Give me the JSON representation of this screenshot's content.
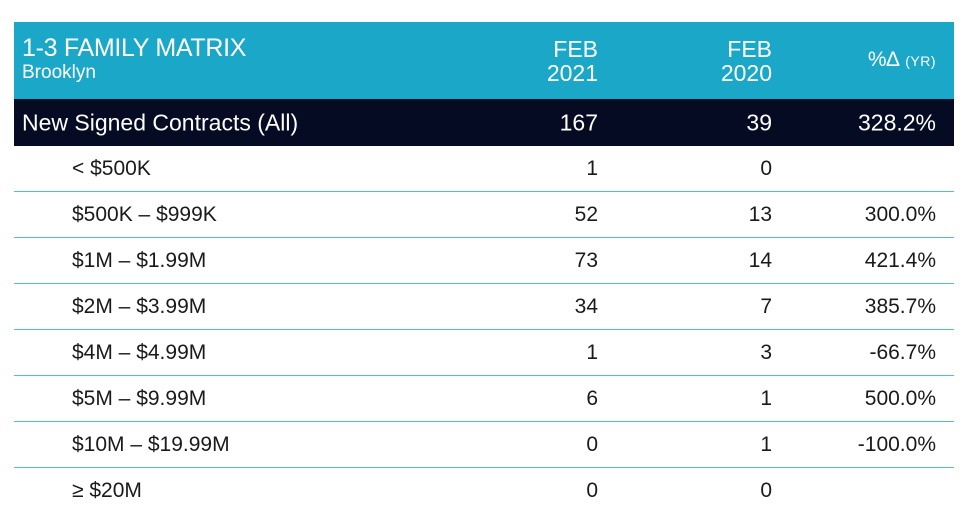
{
  "header": {
    "title": "1-3 FAMILY MATRIX",
    "subtitle": "Brooklyn",
    "col1_line1": "FEB",
    "col1_line2": "2021",
    "col2_line1": "FEB",
    "col2_line2": "2020",
    "col3_main": "%∆",
    "col3_suffix": "(YR)"
  },
  "total": {
    "label": "New Signed Contracts (All)",
    "v2021": "167",
    "v2020": "39",
    "pct": "328.2%"
  },
  "rows": [
    {
      "label": "< $500K",
      "v2021": "1",
      "v2020": "0",
      "pct": ""
    },
    {
      "label": "$500K – $999K",
      "v2021": "52",
      "v2020": "13",
      "pct": "300.0%"
    },
    {
      "label": "$1M – $1.99M",
      "v2021": "73",
      "v2020": "14",
      "pct": "421.4%"
    },
    {
      "label": "$2M – $3.99M",
      "v2021": "34",
      "v2020": "7",
      "pct": "385.7%"
    },
    {
      "label": "$4M – $4.99M",
      "v2021": "1",
      "v2020": "3",
      "pct": "-66.7%"
    },
    {
      "label": "$5M – $9.99M",
      "v2021": "6",
      "v2020": "1",
      "pct": "500.0%"
    },
    {
      "label": "$10M – $19.99M",
      "v2021": "0",
      "v2020": "1",
      "pct": "-100.0%"
    },
    {
      "label": "≥ $20M",
      "v2021": "0",
      "v2020": "0",
      "pct": ""
    }
  ],
  "colors": {
    "header_bg": "#1ba8c8",
    "total_bg": "#050b22",
    "row_border": "#4fc0da"
  },
  "chart_data": {
    "type": "table",
    "title": "1-3 FAMILY MATRIX",
    "subtitle": "Brooklyn",
    "columns": [
      "FEB 2021",
      "FEB 2020",
      "%∆ (YR)"
    ],
    "rows": [
      {
        "category": "New Signed Contracts (All)",
        "FEB 2021": 167,
        "FEB 2020": 39,
        "%∆ (YR)": "328.2%"
      },
      {
        "category": "< $500K",
        "FEB 2021": 1,
        "FEB 2020": 0,
        "%∆ (YR)": ""
      },
      {
        "category": "$500K – $999K",
        "FEB 2021": 52,
        "FEB 2020": 13,
        "%∆ (YR)": "300.0%"
      },
      {
        "category": "$1M – $1.99M",
        "FEB 2021": 73,
        "FEB 2020": 14,
        "%∆ (YR)": "421.4%"
      },
      {
        "category": "$2M – $3.99M",
        "FEB 2021": 34,
        "FEB 2020": 7,
        "%∆ (YR)": "385.7%"
      },
      {
        "category": "$4M – $4.99M",
        "FEB 2021": 1,
        "FEB 2020": 3,
        "%∆ (YR)": "-66.7%"
      },
      {
        "category": "$5M – $9.99M",
        "FEB 2021": 6,
        "FEB 2020": 1,
        "%∆ (YR)": "500.0%"
      },
      {
        "category": "$10M – $19.99M",
        "FEB 2021": 0,
        "FEB 2020": 1,
        "%∆ (YR)": "-100.0%"
      },
      {
        "category": "≥ $20M",
        "FEB 2021": 0,
        "FEB 2020": 0,
        "%∆ (YR)": ""
      }
    ]
  }
}
